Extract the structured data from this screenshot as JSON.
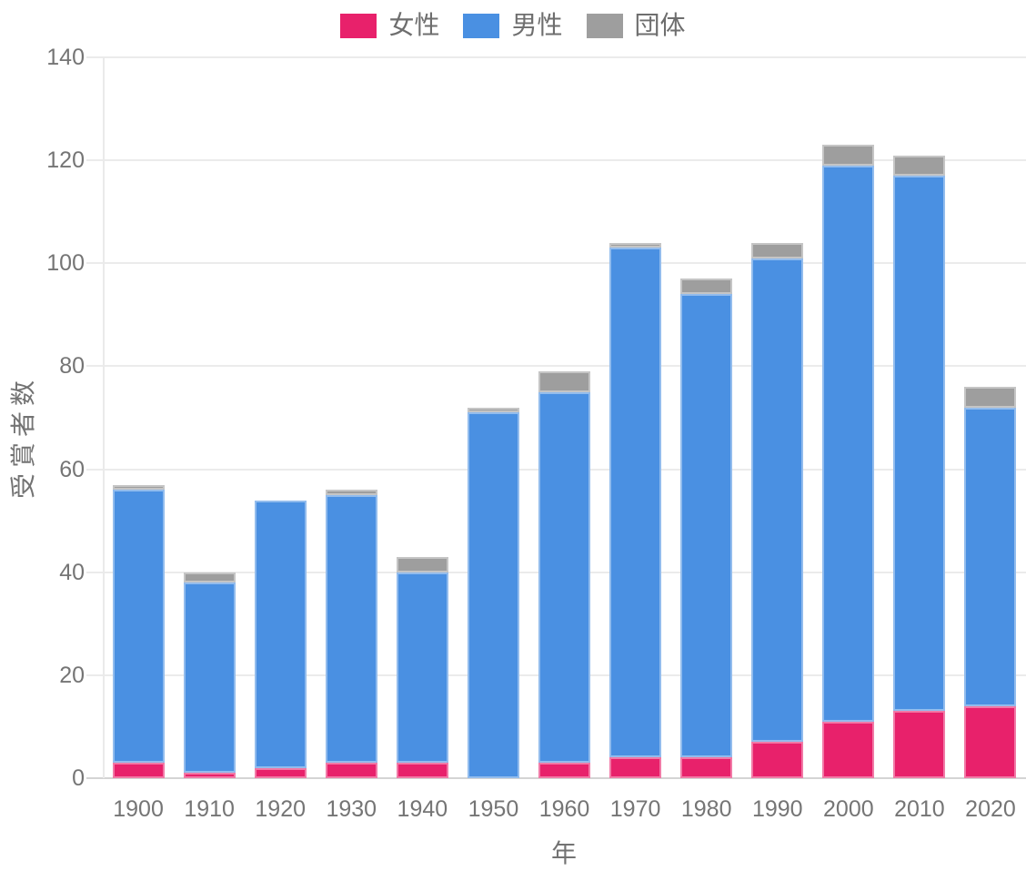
{
  "chart_data": {
    "type": "bar",
    "stacked": true,
    "title": "",
    "xlabel": "年",
    "ylabel": "受賞者数",
    "categories": [
      "1900",
      "1910",
      "1920",
      "1930",
      "1940",
      "1950",
      "1960",
      "1970",
      "1980",
      "1990",
      "2000",
      "2010",
      "2020"
    ],
    "series": [
      {
        "key": "female",
        "name": "女性",
        "color": "#E8216B",
        "values": [
          3,
          1,
          2,
          3,
          3,
          0,
          3,
          4,
          4,
          7,
          11,
          13,
          14
        ]
      },
      {
        "key": "male",
        "name": "男性",
        "color": "#4A90E2",
        "values": [
          53,
          37,
          52,
          52,
          37,
          71,
          72,
          99,
          90,
          94,
          108,
          104,
          58
        ]
      },
      {
        "key": "organization",
        "name": "団体",
        "color": "#9E9E9E",
        "values": [
          1,
          2,
          0,
          1,
          3,
          1,
          4,
          1,
          3,
          3,
          4,
          4,
          4
        ]
      }
    ],
    "ylim": [
      0,
      140
    ],
    "ytick_step": 20,
    "yticks": [
      0,
      20,
      40,
      60,
      80,
      100,
      120,
      140
    ],
    "grid": true,
    "legend_position": "top"
  },
  "colors": {
    "gridline": "#ebebeb",
    "baseline": "#d4d4d4",
    "axis_text": "#757575",
    "title_text": "#737373",
    "legend_text": "#6e6e6e"
  }
}
